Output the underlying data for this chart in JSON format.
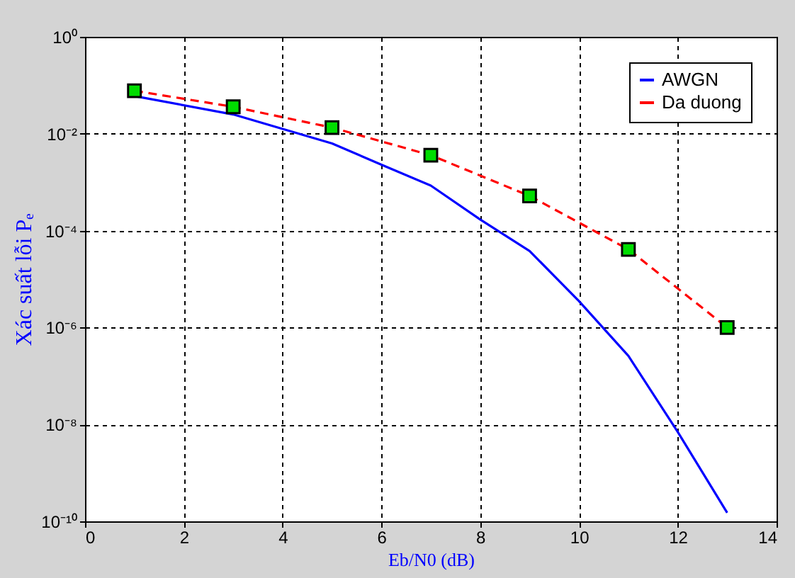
{
  "chart_data": {
    "type": "line",
    "xlabel": "Eb/N0 (dB)",
    "ylabel": "Xác suất lỗi Pₑ",
    "log": "y",
    "xlim": [
      0,
      14
    ],
    "xticks": [
      0,
      2,
      4,
      6,
      8,
      10,
      12,
      14
    ],
    "ylim": [
      1e-10,
      1
    ],
    "yticks": [
      {
        "value": 1e-10,
        "label": "10⁻¹⁰"
      },
      {
        "value": 1e-08,
        "label": "10⁻⁸"
      },
      {
        "value": 1e-06,
        "label": "10⁻⁶"
      },
      {
        "value": 0.0001,
        "label": "10⁻⁴"
      },
      {
        "value": 0.01,
        "label": "10⁻²"
      },
      {
        "value": 1,
        "label": "10⁰"
      }
    ],
    "grid": true,
    "legend": "top right",
    "series": [
      {
        "name": "AWGN",
        "color": "#0000ff",
        "line_style": "solid",
        "marker": "none",
        "x": [
          1,
          3,
          4,
          5,
          6,
          7,
          8,
          9,
          10,
          11,
          12,
          13
        ],
        "values": [
          0.06,
          0.025,
          0.0126,
          0.0063,
          0.0023,
          0.00085,
          0.00017,
          3.8e-05,
          3.5e-06,
          2.6e-07,
          7e-09,
          1.5e-10
        ]
      },
      {
        "name": "Da duong",
        "color": "#ff0000",
        "line_style": "dashed",
        "marker": "square",
        "x": [
          1,
          3,
          5,
          7,
          9,
          11,
          13
        ],
        "values": [
          0.077,
          0.036,
          0.0134,
          0.0036,
          0.00052,
          4.1e-05,
          1e-06
        ]
      }
    ]
  }
}
